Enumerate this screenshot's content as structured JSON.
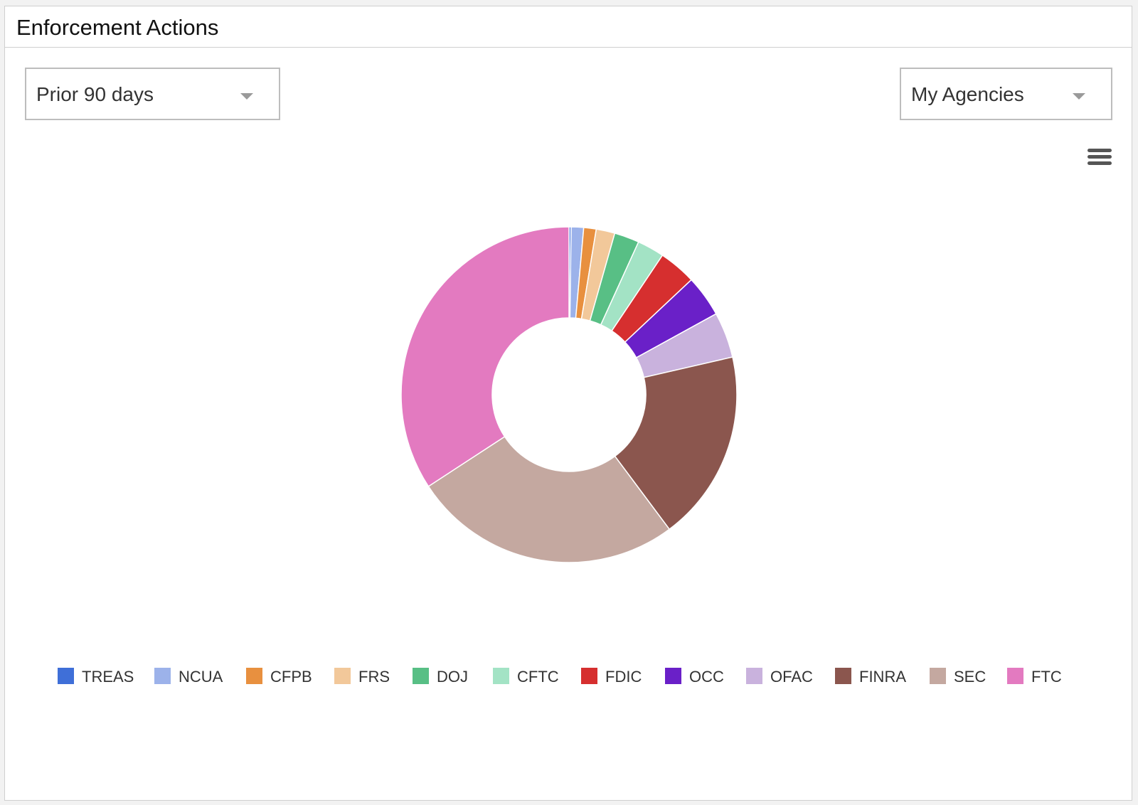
{
  "panel": {
    "title": "Enforcement Actions"
  },
  "filters": {
    "period": {
      "value": "Prior 90 days"
    },
    "agencies": {
      "value": "My Agencies"
    }
  },
  "menu": {
    "icon": "hamburger-menu-icon"
  },
  "chart_data": {
    "type": "pie",
    "donut": true,
    "legend_position": "bottom",
    "categories": [
      "TREAS",
      "NCUA",
      "CFPB",
      "FRS",
      "DOJ",
      "CFTC",
      "FDIC",
      "OCC",
      "OFAC",
      "FINRA",
      "SEC",
      "FTC"
    ],
    "values": [
      0.2,
      1.2,
      1.2,
      1.8,
      2.4,
      2.6,
      3.6,
      4.0,
      4.4,
      18.4,
      26.0,
      34.2
    ],
    "colors": [
      "#3f6fd8",
      "#9cb2ea",
      "#e8903f",
      "#f2c89a",
      "#58bf85",
      "#a3e3c5",
      "#d62f2f",
      "#6a20c8",
      "#c9b2dd",
      "#8b564e",
      "#c4a8a0",
      "#e37ac0"
    ]
  }
}
